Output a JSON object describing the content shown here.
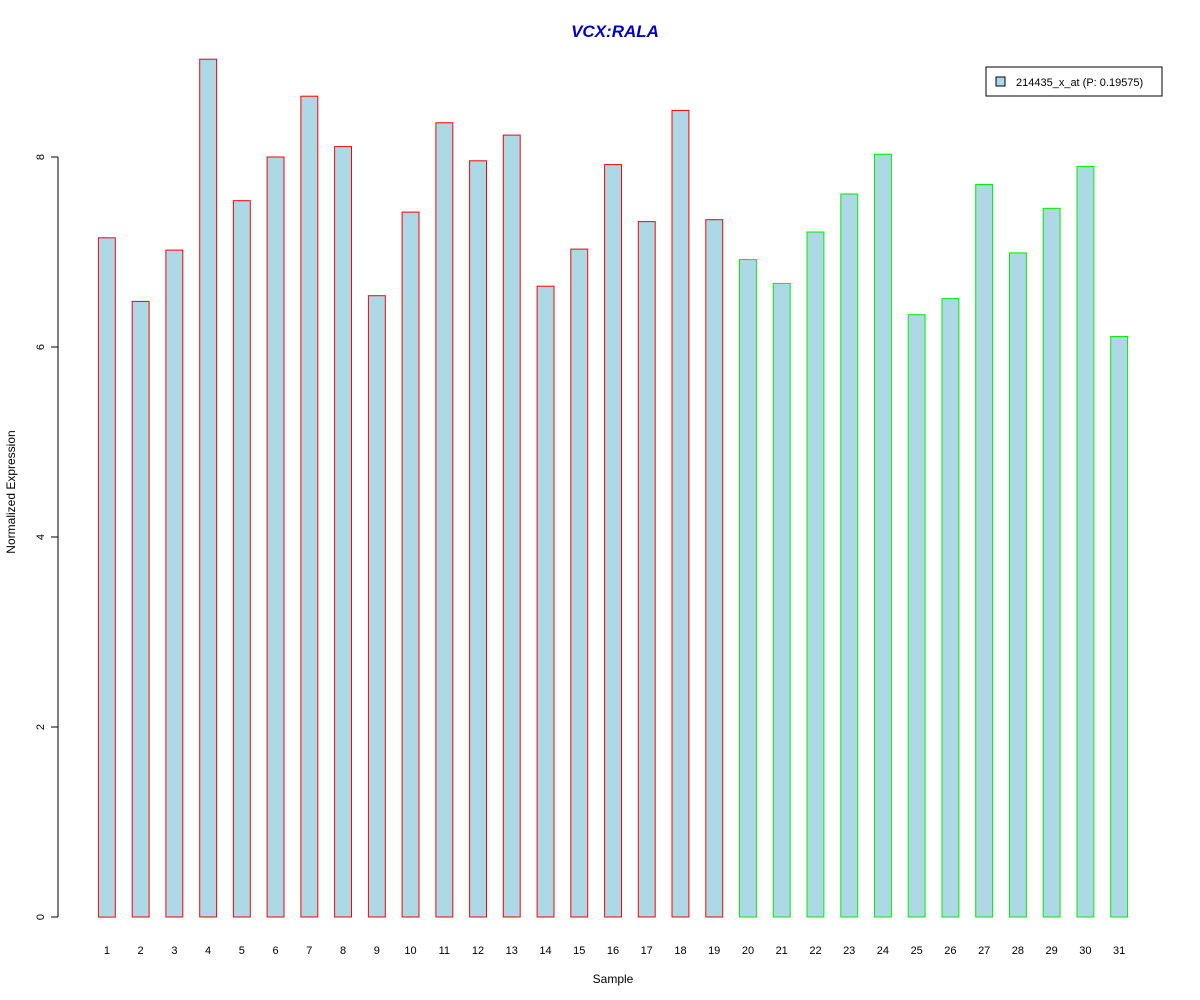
{
  "chart_data": {
    "type": "bar",
    "title": "VCX:RALA",
    "xlabel": "Sample",
    "ylabel": "Normalized Expression",
    "ylim": [
      0,
      9
    ],
    "yticks": [
      0,
      2,
      4,
      6,
      8
    ],
    "grid": false,
    "legend": {
      "placement": "top-right",
      "entries": [
        "214435_x_at (P: 0.19575)"
      ]
    },
    "categories": [
      "1",
      "2",
      "3",
      "4",
      "5",
      "6",
      "7",
      "8",
      "9",
      "10",
      "11",
      "12",
      "13",
      "14",
      "15",
      "16",
      "17",
      "18",
      "19",
      "20",
      "21",
      "22",
      "23",
      "24",
      "25",
      "26",
      "27",
      "28",
      "29",
      "30",
      "31"
    ],
    "series": [
      {
        "name": "214435_x_at (P: 0.19575)",
        "values": [
          7.15,
          6.48,
          7.02,
          9.03,
          7.54,
          8.0,
          8.64,
          8.11,
          6.54,
          7.42,
          8.36,
          7.96,
          8.23,
          6.64,
          7.03,
          7.92,
          7.32,
          8.49,
          7.34,
          6.92,
          6.67,
          7.21,
          7.61,
          8.03,
          6.34,
          6.51,
          7.71,
          6.99,
          7.46,
          7.9,
          6.11
        ]
      }
    ],
    "groups": [
      {
        "samples": "1-19",
        "border_color": "#ff0000"
      },
      {
        "samples": "20-31",
        "border_color": "#00ee00"
      }
    ]
  },
  "colors": {
    "bar_fill": "#add8e6",
    "group1_border": "#ff0000",
    "group2_border": "#00ee00",
    "title": "#0000cc",
    "axis": "#000000"
  }
}
